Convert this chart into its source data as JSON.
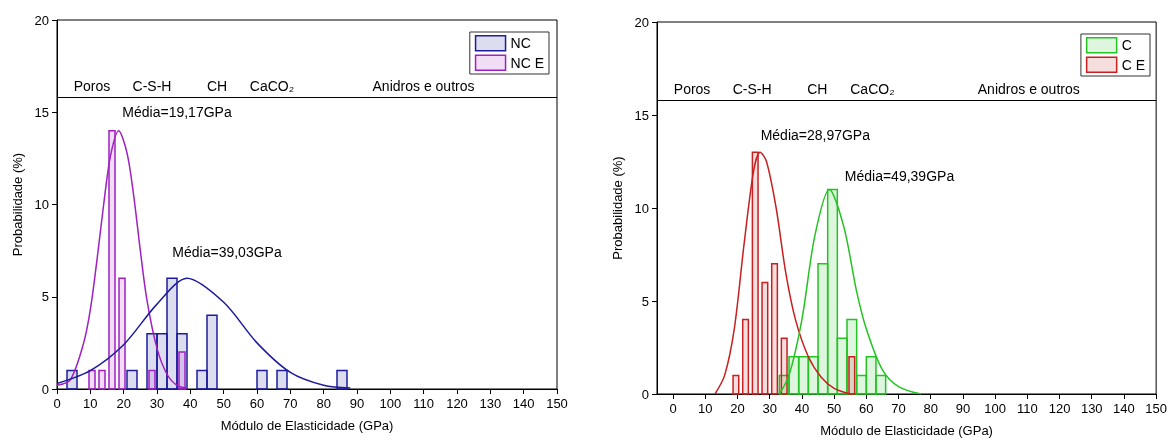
{
  "chart_data": [
    {
      "type": "histogram",
      "xlabel": "Módulo de Elasticidade (GPa)",
      "ylabel": "Probabilidade (%)",
      "xlim": [
        0,
        150
      ],
      "ylim": [
        0,
        20
      ],
      "xticks": [
        0,
        10,
        20,
        30,
        40,
        50,
        60,
        70,
        80,
        90,
        100,
        110,
        120,
        130,
        140,
        150
      ],
      "yticks": [
        0,
        5,
        10,
        15,
        20
      ],
      "legend": "top right",
      "grid": false,
      "series": [
        {
          "name": "NC",
          "color": "#1c1c9c",
          "bins": [
            3,
            6,
            9,
            12,
            15,
            18,
            21,
            24,
            27,
            30,
            33,
            36,
            39,
            42,
            45,
            48,
            51,
            54,
            57,
            60,
            63,
            66,
            69,
            72,
            75,
            78,
            81,
            84,
            87
          ],
          "values": [
            1,
            0,
            0,
            0,
            0,
            0,
            1,
            0,
            3,
            3,
            6,
            3,
            0,
            1,
            4,
            0,
            0,
            0,
            0,
            1,
            0,
            1,
            0,
            0,
            0,
            0,
            0,
            1
          ]
        },
        {
          "name": "NC E",
          "color": "#a020c0",
          "bins": [
            9,
            12,
            15,
            18,
            21,
            24,
            27,
            30,
            33,
            36,
            39
          ],
          "values": [
            1,
            1,
            14,
            6,
            0,
            0,
            1,
            0,
            0,
            2
          ]
        },
        {
          "type": "line",
          "color": "#a020c0",
          "x": [
            0,
            4,
            8,
            10,
            12,
            14,
            16,
            18.5,
            21,
            23,
            25,
            27,
            30,
            33,
            36,
            39
          ],
          "values": [
            0.2,
            0.5,
            2.5,
            4.3,
            7,
            10,
            12.6,
            14,
            12.8,
            10.5,
            7.5,
            4.8,
            2.2,
            0.8,
            0.2,
            0.05
          ]
        },
        {
          "type": "line",
          "color": "#1c1c9c",
          "x": [
            0,
            10,
            20,
            30,
            39,
            50,
            60,
            70,
            80,
            88
          ],
          "values": [
            0.3,
            1,
            2.4,
            4.6,
            6,
            4.7,
            2.5,
            0.9,
            0.2,
            0.05
          ]
        }
      ],
      "ref_lines": [
        {
          "axis": "y",
          "value": 15.8,
          "color": "#000000"
        }
      ],
      "annotations": [
        "Poros",
        "C-S-H",
        "CH",
        "CaCO₂",
        "Anidros e outros",
        "Média=19,17GPa",
        "Média=39,03GPa"
      ]
    },
    {
      "type": "histogram",
      "xlabel": "Módulo de Elasticidade (GPa)",
      "ylabel": "Probabilidade (%)",
      "xlim": [
        -5,
        150
      ],
      "ylim": [
        0,
        20
      ],
      "xticks": [
        0,
        10,
        20,
        30,
        40,
        50,
        60,
        70,
        80,
        90,
        100,
        110,
        120,
        130,
        140,
        150
      ],
      "yticks": [
        0,
        5,
        10,
        15,
        20
      ],
      "legend": "top right",
      "grid": false,
      "series": [
        {
          "name": "C",
          "color": "#22c322",
          "bins": [
            33,
            36,
            39,
            42,
            45,
            48,
            51,
            54,
            57,
            60,
            63,
            66
          ],
          "values": [
            1,
            2,
            2,
            2,
            7,
            11,
            3,
            4,
            1,
            2,
            1
          ]
        },
        {
          "name": "C E",
          "color": "#c62020",
          "bins": [
            18,
            21,
            24,
            27,
            30,
            33,
            36,
            39,
            42,
            45,
            48,
            51,
            54,
            57
          ],
          "values": [
            1,
            4,
            13,
            6,
            7,
            3,
            0,
            0,
            0,
            0,
            0,
            0,
            2
          ]
        },
        {
          "type": "line",
          "color": "#c62020",
          "x": [
            13,
            16,
            19,
            22,
            25,
            27,
            29,
            32,
            35,
            38,
            42,
            46,
            50,
            55
          ],
          "values": [
            0,
            1,
            3.5,
            8,
            12,
            13,
            12.5,
            10,
            6.5,
            4,
            2,
            0.9,
            0.3,
            0
          ]
        },
        {
          "type": "line",
          "color": "#22c322",
          "x": [
            33,
            36,
            40,
            44,
            48.5,
            53,
            57,
            60,
            65,
            70,
            77
          ],
          "values": [
            0,
            1,
            4,
            8.5,
            11,
            9,
            5.5,
            3.5,
            1.3,
            0.4,
            0
          ]
        }
      ],
      "ref_lines": [
        {
          "axis": "y",
          "value": 15.8,
          "color": "#000000"
        }
      ],
      "annotations": [
        "Poros",
        "C-S-H",
        "CH",
        "CaCO₂",
        "Anidros e outros",
        "Média=28,97GPa",
        "Média=49,39GPa"
      ]
    }
  ]
}
